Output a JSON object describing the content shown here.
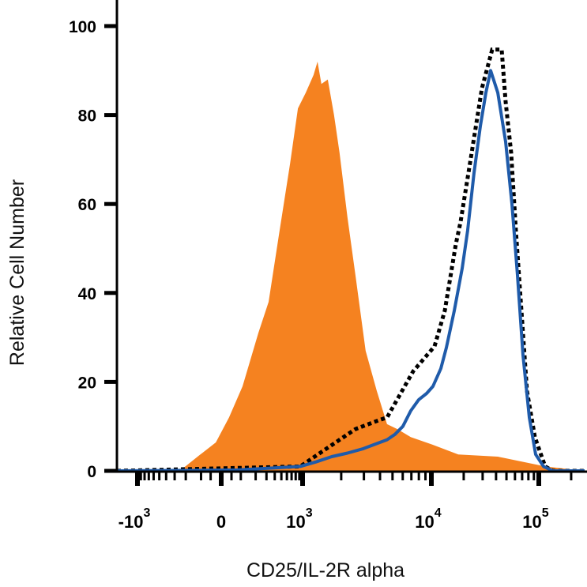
{
  "chart_data": {
    "type": "area",
    "title": "",
    "xlabel": "CD25/IL-2R alpha",
    "ylabel": "Relative Cell Number",
    "x_scale": "biexponential",
    "xlim": [
      -1900,
      270000
    ],
    "ylim": [
      0,
      100
    ],
    "grid": false,
    "legend": "none",
    "y_ticks": [
      0,
      20,
      40,
      60,
      80,
      100
    ],
    "y_tick_labels": [
      "0",
      "20",
      "40",
      "60",
      "80",
      "100"
    ],
    "x_ticks": [
      -1000,
      0,
      1000,
      10000,
      100000
    ],
    "x_tick_labels": [
      {
        "base": "-10",
        "exp": "3"
      },
      {
        "base": "0",
        "exp": ""
      },
      {
        "base": "10",
        "exp": "3"
      },
      {
        "base": "10",
        "exp": "4"
      },
      {
        "base": "10",
        "exp": "5"
      }
    ],
    "series": [
      {
        "style": "filled",
        "color": "#F58220",
        "x": [
          -250,
          -120,
          -25,
          38,
          110,
          222,
          324,
          460,
          665,
          860,
          1058,
          1219,
          1309,
          1403,
          1572,
          1760,
          1941,
          2237,
          2578,
          3096,
          3776,
          4533,
          5445,
          6925,
          10200,
          17800,
          41500,
          114600,
          267000
        ],
        "y": [
          0,
          3.2,
          6.4,
          12,
          19,
          31,
          38,
          53,
          69,
          81.5,
          85,
          89,
          92,
          87,
          88,
          80,
          71.5,
          57,
          44,
          27,
          18,
          10.5,
          9.4,
          7.6,
          5.9,
          3.7,
          3.2,
          1,
          0
        ]
      },
      {
        "style": "solid line",
        "color": "#1F5BAA",
        "x": [
          -1900,
          79,
          424,
          927,
          1271,
          1687,
          2237,
          2965,
          3664,
          4533,
          5224,
          6012,
          6925,
          7980,
          9190,
          10340,
          12250,
          13800,
          16340,
          19350,
          21760,
          24950,
          28580,
          32150,
          35580,
          41500,
          49130,
          56250,
          63260,
          71230,
          81620,
          93470,
          110600,
          135500,
          267000
        ],
        "y": [
          0,
          0.2,
          0.7,
          1,
          2,
          3.2,
          4,
          5,
          6,
          7,
          8.2,
          10,
          13.5,
          16,
          17.4,
          19,
          23,
          27.7,
          36,
          45.5,
          54,
          67,
          77.5,
          85,
          90,
          85,
          74,
          60,
          44,
          26,
          12,
          3.7,
          1,
          0,
          0
        ]
      },
      {
        "style": "dotted line",
        "color": "#000000",
        "x": [
          -1900,
          927,
          1466,
          2578,
          3935,
          4533,
          7230,
          10700,
          13330,
          16900,
          18700,
          23700,
          29570,
          36800,
          45100,
          49130,
          55300,
          61200,
          68900,
          77600,
          91900,
          114600,
          135500,
          267000
        ],
        "y": [
          0,
          1,
          4.6,
          9.4,
          11.4,
          12,
          22.4,
          28,
          36,
          51,
          56,
          71.5,
          86,
          94.7,
          94.7,
          83,
          71.5,
          54,
          36,
          18,
          7.6,
          1,
          0,
          0
        ]
      }
    ]
  }
}
